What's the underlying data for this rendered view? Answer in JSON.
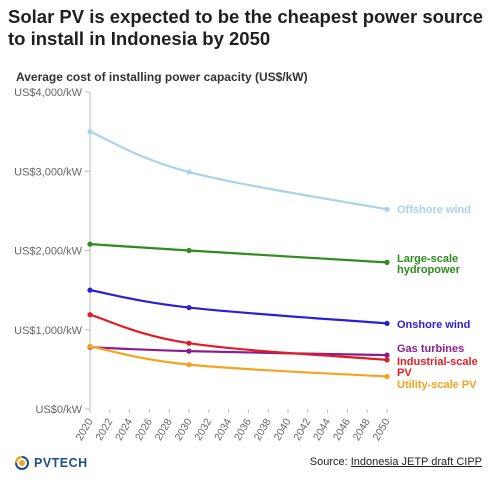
{
  "title": "Solar PV is expected to be the cheapest power source to install in Indonesia by 2050",
  "subtitle": "Average cost of installing power capacity (US$/kW)",
  "source_prefix": "Source: ",
  "source_link": "Indonesia JETP draft CIPP",
  "logo_text": "PVTECH",
  "chart_data": {
    "type": "line",
    "xlim": [
      2020,
      2050
    ],
    "ylim": [
      0,
      4000
    ],
    "x_ticks": [
      2020,
      2022,
      2024,
      2026,
      2028,
      2030,
      2032,
      2034,
      2036,
      2038,
      2040,
      2042,
      2044,
      2046,
      2048,
      2050
    ],
    "x_tick_labels": [
      "2020",
      "2022",
      "2024",
      "2026",
      "2028",
      "2030",
      "2032",
      "2034",
      "2036",
      "2038",
      "2040",
      "2042",
      "2044",
      "2046",
      "2048",
      "2050"
    ],
    "y_ticks": [
      0,
      1000,
      2000,
      3000,
      4000
    ],
    "y_tick_labels": [
      "US$0/kW",
      "US$1,000/kW",
      "US$2,000/kW",
      "US$3,000/kW",
      "US$4,000/kW"
    ],
    "grid": false,
    "x": [
      2020,
      2030,
      2050
    ],
    "series": [
      {
        "name": "Offshore wind",
        "label_lines": [
          "Offshore wind"
        ],
        "color": "#a9d3e8",
        "values": [
          3500,
          2990,
          2520
        ]
      },
      {
        "name": "Large-scale hydropower",
        "label_lines": [
          "Large-scale",
          "hydropower"
        ],
        "color": "#2e8b1e",
        "values": [
          2080,
          2000,
          1850
        ]
      },
      {
        "name": "Onshore wind",
        "label_lines": [
          "Onshore wind"
        ],
        "color": "#2a1fd6",
        "values": [
          1500,
          1280,
          1080
        ]
      },
      {
        "name": "Gas turbines",
        "label_lines": [
          "Gas turbines"
        ],
        "color": "#8a1e90",
        "values": [
          780,
          730,
          680
        ]
      },
      {
        "name": "Industrial-scale PV",
        "label_lines": [
          "Industrial-scale",
          "PV"
        ],
        "color": "#e01e22",
        "values": [
          1190,
          830,
          620
        ]
      },
      {
        "name": "Utility-scale PV",
        "label_lines": [
          "Utility-scale PV"
        ],
        "color": "#f4a31c",
        "values": [
          790,
          560,
          410
        ]
      }
    ]
  }
}
